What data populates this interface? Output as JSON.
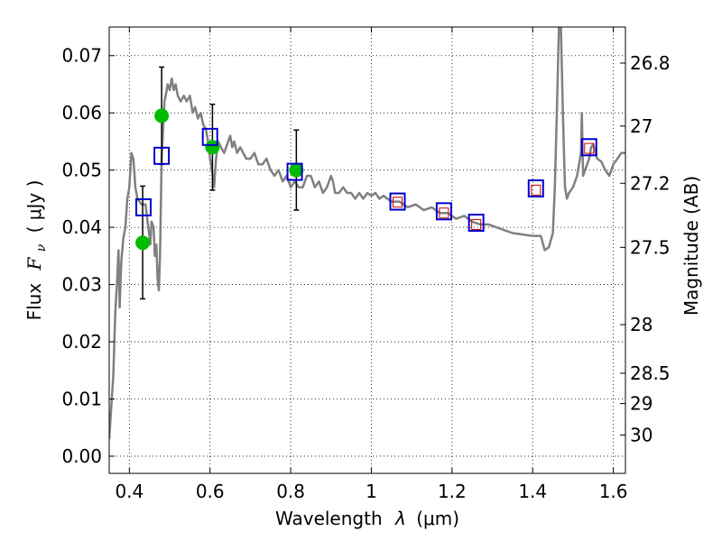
{
  "chart_data": {
    "type": "scatter",
    "xlabel_prefix": "Wavelength",
    "xlabel_var": "λ",
    "xlabel_unit": "(μm)",
    "ylabel_prefix": "Flux",
    "ylabel_var": "F",
    "ylabel_sub": "ν",
    "ylabel_unit": "( μJy )",
    "y2label": "Magnitude (AB)",
    "xlim": [
      0.35,
      1.63
    ],
    "ylim": [
      -0.003,
      0.075
    ],
    "grid": true,
    "x_ticks": [
      {
        "value": 0.4,
        "label": "0.4"
      },
      {
        "value": 0.6,
        "label": "0.6"
      },
      {
        "value": 0.8,
        "label": "0.8"
      },
      {
        "value": 1.0,
        "label": "1"
      },
      {
        "value": 1.2,
        "label": "1.2"
      },
      {
        "value": 1.4,
        "label": "1.4"
      },
      {
        "value": 1.6,
        "label": "1.6"
      }
    ],
    "y_ticks": [
      {
        "value": 0.0,
        "label": "0.00"
      },
      {
        "value": 0.01,
        "label": "0.01"
      },
      {
        "value": 0.02,
        "label": "0.02"
      },
      {
        "value": 0.03,
        "label": "0.03"
      },
      {
        "value": 0.04,
        "label": "0.04"
      },
      {
        "value": 0.05,
        "label": "0.05"
      },
      {
        "value": 0.06,
        "label": "0.06"
      },
      {
        "value": 0.07,
        "label": "0.07"
      }
    ],
    "y2_ticks": [
      {
        "flux": 0.0687,
        "label": "26.8"
      },
      {
        "flux": 0.0577,
        "label": "27"
      },
      {
        "flux": 0.0477,
        "label": "27.2"
      },
      {
        "flux": 0.0365,
        "label": "27.5"
      },
      {
        "flux": 0.023,
        "label": "28"
      },
      {
        "flux": 0.0145,
        "label": "28.5"
      },
      {
        "flux": 0.0092,
        "label": "29"
      },
      {
        "flux": 0.0037,
        "label": "30"
      }
    ],
    "series": [
      {
        "kind": "line",
        "color": "#808080",
        "points": [
          [
            0.35,
            0.003
          ],
          [
            0.36,
            0.014
          ],
          [
            0.365,
            0.025
          ],
          [
            0.37,
            0.031
          ],
          [
            0.373,
            0.036
          ],
          [
            0.376,
            0.026
          ],
          [
            0.38,
            0.034
          ],
          [
            0.385,
            0.038
          ],
          [
            0.39,
            0.04
          ],
          [
            0.395,
            0.045
          ],
          [
            0.4,
            0.047
          ],
          [
            0.405,
            0.053
          ],
          [
            0.41,
            0.052
          ],
          [
            0.415,
            0.047
          ],
          [
            0.42,
            0.045
          ],
          [
            0.43,
            0.044
          ],
          [
            0.44,
            0.044
          ],
          [
            0.447,
            0.04
          ],
          [
            0.452,
            0.037
          ],
          [
            0.455,
            0.041
          ],
          [
            0.46,
            0.04
          ],
          [
            0.463,
            0.035
          ],
          [
            0.467,
            0.037
          ],
          [
            0.47,
            0.031
          ],
          [
            0.473,
            0.029
          ],
          [
            0.476,
            0.035
          ],
          [
            0.48,
            0.052
          ],
          [
            0.483,
            0.056
          ],
          [
            0.487,
            0.062
          ],
          [
            0.49,
            0.063
          ],
          [
            0.495,
            0.065
          ],
          [
            0.5,
            0.064
          ],
          [
            0.505,
            0.066
          ],
          [
            0.51,
            0.064
          ],
          [
            0.515,
            0.065
          ],
          [
            0.52,
            0.063
          ],
          [
            0.527,
            0.062
          ],
          [
            0.535,
            0.063
          ],
          [
            0.542,
            0.062
          ],
          [
            0.55,
            0.063
          ],
          [
            0.557,
            0.06
          ],
          [
            0.563,
            0.061
          ],
          [
            0.57,
            0.059
          ],
          [
            0.577,
            0.06
          ],
          [
            0.583,
            0.058
          ],
          [
            0.59,
            0.057
          ],
          [
            0.595,
            0.055
          ],
          [
            0.6,
            0.052
          ],
          [
            0.605,
            0.05
          ],
          [
            0.61,
            0.047
          ],
          [
            0.615,
            0.052
          ],
          [
            0.62,
            0.055
          ],
          [
            0.627,
            0.054
          ],
          [
            0.635,
            0.053
          ],
          [
            0.64,
            0.054
          ],
          [
            0.645,
            0.055
          ],
          [
            0.65,
            0.056
          ],
          [
            0.655,
            0.054
          ],
          [
            0.66,
            0.055
          ],
          [
            0.667,
            0.053
          ],
          [
            0.675,
            0.054
          ],
          [
            0.682,
            0.053
          ],
          [
            0.69,
            0.052
          ],
          [
            0.7,
            0.052
          ],
          [
            0.71,
            0.053
          ],
          [
            0.72,
            0.051
          ],
          [
            0.73,
            0.051
          ],
          [
            0.74,
            0.052
          ],
          [
            0.75,
            0.05
          ],
          [
            0.76,
            0.049
          ],
          [
            0.77,
            0.05
          ],
          [
            0.78,
            0.048
          ],
          [
            0.79,
            0.049
          ],
          [
            0.8,
            0.047
          ],
          [
            0.81,
            0.048
          ],
          [
            0.82,
            0.047
          ],
          [
            0.83,
            0.047
          ],
          [
            0.84,
            0.049
          ],
          [
            0.85,
            0.049
          ],
          [
            0.86,
            0.047
          ],
          [
            0.87,
            0.048
          ],
          [
            0.88,
            0.046
          ],
          [
            0.89,
            0.047
          ],
          [
            0.9,
            0.049
          ],
          [
            0.905,
            0.048
          ],
          [
            0.91,
            0.046
          ],
          [
            0.92,
            0.046
          ],
          [
            0.93,
            0.047
          ],
          [
            0.94,
            0.046
          ],
          [
            0.95,
            0.046
          ],
          [
            0.96,
            0.045
          ],
          [
            0.97,
            0.046
          ],
          [
            0.98,
            0.045
          ],
          [
            0.99,
            0.046
          ],
          [
            1.0,
            0.0455
          ],
          [
            1.01,
            0.046
          ],
          [
            1.02,
            0.045
          ],
          [
            1.03,
            0.0455
          ],
          [
            1.05,
            0.0445
          ],
          [
            1.07,
            0.0445
          ],
          [
            1.09,
            0.0435
          ],
          [
            1.11,
            0.044
          ],
          [
            1.13,
            0.043
          ],
          [
            1.15,
            0.0435
          ],
          [
            1.17,
            0.0425
          ],
          [
            1.19,
            0.0425
          ],
          [
            1.21,
            0.0415
          ],
          [
            1.23,
            0.042
          ],
          [
            1.25,
            0.041
          ],
          [
            1.27,
            0.0405
          ],
          [
            1.29,
            0.0405
          ],
          [
            1.31,
            0.04
          ],
          [
            1.33,
            0.0395
          ],
          [
            1.35,
            0.039
          ],
          [
            1.37,
            0.0388
          ],
          [
            1.4,
            0.0385
          ],
          [
            1.42,
            0.0385
          ],
          [
            1.43,
            0.036
          ],
          [
            1.44,
            0.0365
          ],
          [
            1.45,
            0.039
          ],
          [
            1.455,
            0.047
          ],
          [
            1.46,
            0.06
          ],
          [
            1.465,
            0.075
          ],
          [
            1.47,
            0.075
          ],
          [
            1.475,
            0.06
          ],
          [
            1.48,
            0.047
          ],
          [
            1.485,
            0.045
          ],
          [
            1.49,
            0.046
          ],
          [
            1.5,
            0.047
          ],
          [
            1.51,
            0.049
          ],
          [
            1.52,
            0.053
          ],
          [
            1.522,
            0.06
          ],
          [
            1.525,
            0.049
          ],
          [
            1.53,
            0.05
          ],
          [
            1.54,
            0.052
          ],
          [
            1.545,
            0.054
          ],
          [
            1.55,
            0.0545
          ],
          [
            1.56,
            0.052
          ],
          [
            1.57,
            0.0515
          ],
          [
            1.58,
            0.05
          ],
          [
            1.59,
            0.049
          ],
          [
            1.6,
            0.051
          ],
          [
            1.61,
            0.052
          ],
          [
            1.62,
            0.053
          ],
          [
            1.63,
            0.053
          ]
        ]
      },
      {
        "kind": "points-errorbar",
        "color": "#00bb00",
        "points": [
          {
            "x": 0.433,
            "y": 0.0373,
            "ylow": 0.0275,
            "yhigh": 0.0472
          },
          {
            "x": 0.48,
            "y": 0.0595,
            "ylow": 0.051,
            "yhigh": 0.068
          },
          {
            "x": 0.606,
            "y": 0.054,
            "ylow": 0.0465,
            "yhigh": 0.0615
          },
          {
            "x": 0.814,
            "y": 0.05,
            "ylow": 0.043,
            "yhigh": 0.057
          }
        ]
      },
      {
        "kind": "squares",
        "color": "#0000cc",
        "points": [
          [
            0.435,
            0.0435
          ],
          [
            0.48,
            0.0525
          ],
          [
            0.6,
            0.0558
          ],
          [
            0.81,
            0.0497
          ],
          [
            1.065,
            0.0445
          ],
          [
            1.18,
            0.0428
          ],
          [
            1.26,
            0.0408
          ],
          [
            1.408,
            0.0468
          ],
          [
            1.54,
            0.054
          ]
        ]
      },
      {
        "kind": "small-squares",
        "color": "#cc0000",
        "points": [
          [
            1.065,
            0.0444
          ],
          [
            1.18,
            0.0425
          ],
          [
            1.26,
            0.0405
          ],
          [
            1.408,
            0.0465
          ],
          [
            1.54,
            0.0538
          ]
        ]
      }
    ]
  }
}
